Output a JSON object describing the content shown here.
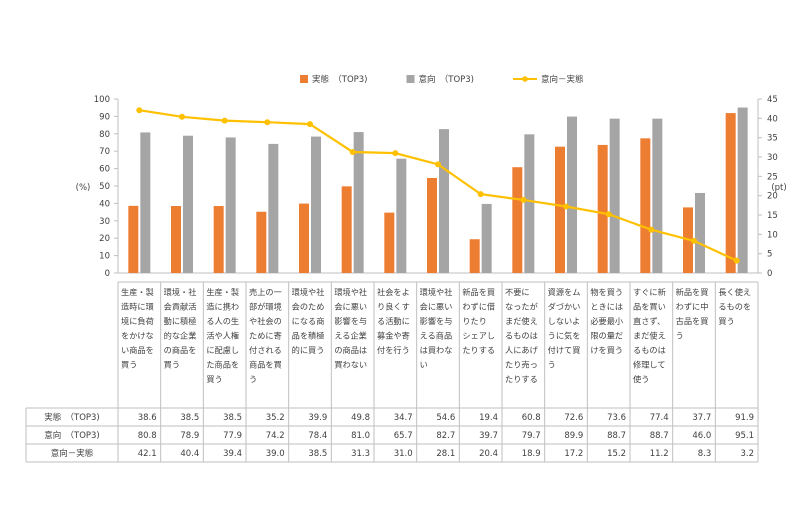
{
  "chart_data": {
    "type": "bar+line",
    "legend": {
      "placement": "top-center",
      "items": [
        {
          "label": "実態　（TOP3)",
          "kind": "bar",
          "color": "#ED7D31"
        },
        {
          "label": "意向　（TOP3)",
          "kind": "bar",
          "color": "#A5A5A5"
        },
        {
          "label": "意向－実態",
          "kind": "line",
          "color": "#FFC000"
        }
      ]
    },
    "y_left": {
      "label": "(%)",
      "min": 0,
      "max": 100,
      "step": 10
    },
    "y_right": {
      "label": "(pt)",
      "min": 0,
      "max": 45,
      "step": 5
    },
    "grid": false,
    "categories": [
      [
        "生産・製",
        "造時に環",
        "境に負荷",
        "をかけな",
        "い商品を",
        "買う"
      ],
      [
        "環境・社",
        "会貢献活",
        "動に積極",
        "的な企業",
        "の商品を",
        "買う"
      ],
      [
        "生産・製",
        "造に携わ",
        "る人の生",
        "活や人権",
        "に配慮し",
        "た商品を",
        "買う"
      ],
      [
        "売上の一",
        "部が環境",
        "や社会の",
        "ために寄",
        "付される",
        "商品を買",
        "う"
      ],
      [
        "環境や社",
        "会のため",
        "になる商",
        "品を積極",
        "的に買う"
      ],
      [
        "環境や社",
        "会に悪い",
        "影響を与",
        "える企業",
        "の商品は",
        "買わない"
      ],
      [
        "社会をよ",
        "り良くす",
        "る活動に",
        "募金や寄",
        "付を行う"
      ],
      [
        "環境や社",
        "会に悪い",
        "影響を与",
        "える商品",
        "は買わな",
        "い"
      ],
      [
        "新品を買",
        "わずに借",
        "りたり",
        "シェアし",
        "たりする"
      ],
      [
        "不要に",
        "なったが",
        "まだ使え",
        "るものは",
        "人にあげ",
        "たり売っ",
        "たりする"
      ],
      [
        "資源をム",
        "ダづかい",
        "しないよ",
        "うに気を",
        "付けて買",
        "う"
      ],
      [
        "物を買う",
        "ときには",
        "必要最小",
        "限の量だ",
        "けを買う"
      ],
      [
        "すぐに新",
        "品を買い",
        "直さず、",
        "まだ使え",
        "るものは",
        "修理して",
        "使う"
      ],
      [
        "新品を買",
        "わずに中",
        "古品を買",
        "う"
      ],
      [
        "長く使え",
        "るものを",
        "買う"
      ]
    ],
    "series": [
      {
        "name": "実態　（TOP3)",
        "type": "bar",
        "axis": "left",
        "color": "#ED7D31",
        "values": [
          38.6,
          38.5,
          38.5,
          35.2,
          39.9,
          49.8,
          34.7,
          54.6,
          19.4,
          60.8,
          72.6,
          73.6,
          77.4,
          37.7,
          91.9
        ]
      },
      {
        "name": "意向　（TOP3)",
        "type": "bar",
        "axis": "left",
        "color": "#A5A5A5",
        "values": [
          80.8,
          78.9,
          77.9,
          74.2,
          78.4,
          81.0,
          65.7,
          82.7,
          39.7,
          79.7,
          89.9,
          88.7,
          88.7,
          46.0,
          95.1
        ]
      },
      {
        "name": "意向－実態",
        "type": "line",
        "axis": "right",
        "color": "#FFC000",
        "values": [
          42.1,
          40.4,
          39.4,
          39.0,
          38.5,
          31.3,
          31.0,
          28.1,
          20.4,
          18.9,
          17.2,
          15.2,
          11.2,
          8.3,
          3.2
        ]
      }
    ],
    "table": {
      "row_labels": [
        "実態　（TOP3)",
        "意向　（TOP3)",
        "意向－実態"
      ],
      "rows": [
        [
          "38.6",
          "38.5",
          "38.5",
          "35.2",
          "39.9",
          "49.8",
          "34.7",
          "54.6",
          "19.4",
          "60.8",
          "72.6",
          "73.6",
          "77.4",
          "37.7",
          "91.9"
        ],
        [
          "80.8",
          "78.9",
          "77.9",
          "74.2",
          "78.4",
          "81.0",
          "65.7",
          "82.7",
          "39.7",
          "79.7",
          "89.9",
          "88.7",
          "88.7",
          "46.0",
          "95.1"
        ],
        [
          "42.1",
          "40.4",
          "39.4",
          "39.0",
          "38.5",
          "31.3",
          "31.0",
          "28.1",
          "20.4",
          "18.9",
          "17.2",
          "15.2",
          "11.2",
          "8.3",
          "3.2"
        ]
      ]
    }
  }
}
